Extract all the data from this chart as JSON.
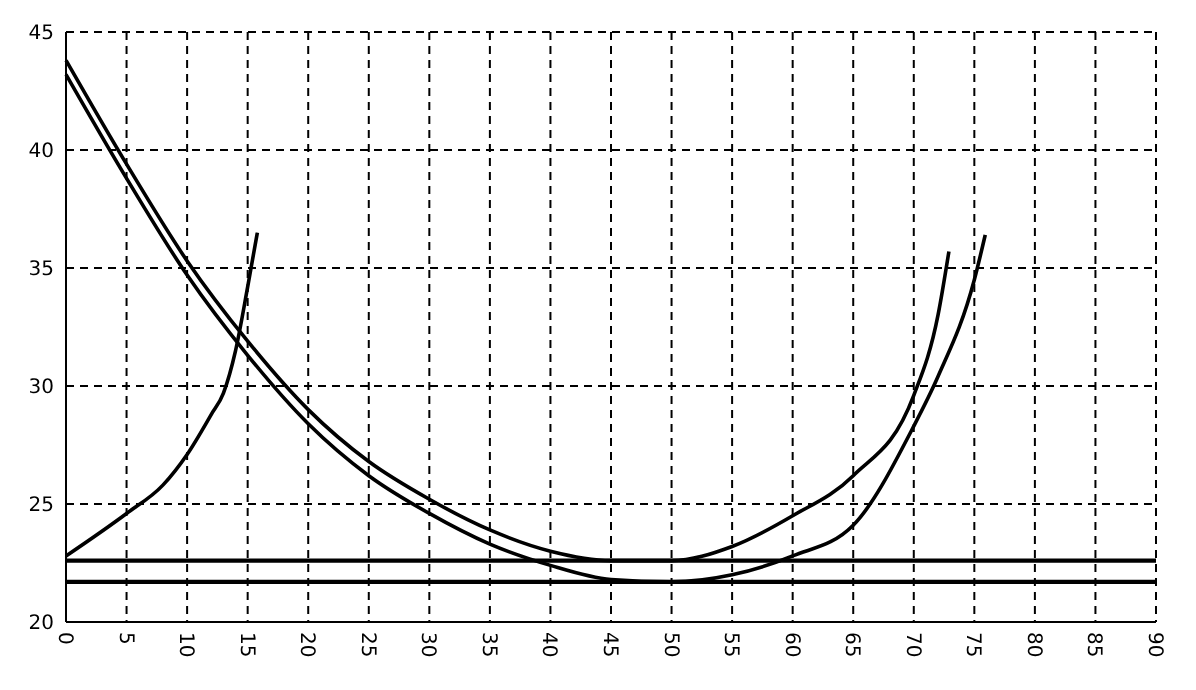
{
  "chart_data": {
    "type": "line",
    "xlim": [
      0,
      90
    ],
    "xticks": [
      0,
      5,
      10,
      15,
      20,
      25,
      30,
      35,
      40,
      45,
      50,
      55,
      60,
      65,
      70,
      75,
      80,
      85,
      90
    ],
    "ylim": [
      20,
      45
    ],
    "yticks": [
      20,
      25,
      30,
      35,
      40,
      45
    ],
    "grid": true,
    "marker": "none",
    "line_style": "solid",
    "series": [
      {
        "color": "#000000",
        "x": [
          0,
          5,
          10,
          15,
          20,
          25,
          30,
          35,
          40,
          45,
          50,
          55,
          60,
          65,
          70,
          72,
          72.9
        ],
        "values": [
          43.8,
          39.4,
          35.3,
          31.9,
          29.0,
          26.8,
          25.2,
          23.9,
          23.0,
          22.6,
          22.6,
          23.2,
          24.5,
          26.2,
          29.6,
          33.0,
          35.7
        ]
      },
      {
        "color": "#000000",
        "x": [
          0,
          5,
          10,
          15,
          20,
          25,
          30,
          35,
          40,
          45,
          50,
          55,
          60,
          65,
          70,
          72,
          75,
          75.9
        ],
        "values": [
          43.2,
          38.8,
          34.7,
          31.3,
          28.4,
          26.2,
          24.6,
          23.3,
          22.4,
          21.8,
          21.7,
          22.0,
          22.8,
          24.1,
          28.3,
          30.4,
          34.5,
          36.4
        ]
      },
      {
        "color": "#000000",
        "x": [
          0,
          5,
          8,
          10,
          12,
          13,
          14,
          15,
          15.8
        ],
        "values": [
          22.8,
          24.6,
          25.8,
          27.1,
          28.8,
          29.7,
          31.5,
          34.2,
          36.5
        ]
      }
    ],
    "ref_lines": [
      {
        "axis": "y",
        "value": 22.6,
        "color": "#000000"
      },
      {
        "axis": "y",
        "value": 21.7,
        "color": "#000000"
      }
    ]
  }
}
